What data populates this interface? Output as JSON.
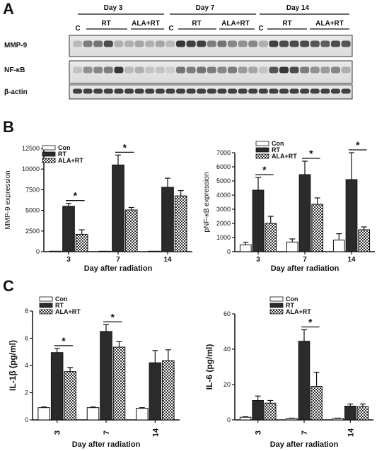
{
  "panel_labels": [
    "A",
    "B",
    "C"
  ],
  "western_blot": {
    "days": [
      "Day 3",
      "Day 7",
      "Day 14"
    ],
    "groups": [
      "C",
      "RT",
      "ALA+RT"
    ],
    "rows": [
      "MMP-9",
      "NF-κB",
      "β-actin"
    ]
  },
  "colors": {
    "con": "#ffffff",
    "rt": "#2b2b2b",
    "alart_pattern": "checker",
    "axis": "#111111"
  },
  "chart_data": [
    {
      "id": "mmp9",
      "type": "bar",
      "categories": [
        "3",
        "7",
        "14"
      ],
      "xlabel": "Day after radiation",
      "ylabel": "MMP-9 expression",
      "ylim": [
        0,
        12500
      ],
      "yticks": [
        0,
        2500,
        5000,
        7500,
        10000,
        12500
      ],
      "series": [
        {
          "name": "Con",
          "values": [
            60,
            60,
            60
          ],
          "errors": [
            0,
            0,
            0
          ]
        },
        {
          "name": "RT",
          "values": [
            5500,
            10500,
            7800
          ],
          "errors": [
            350,
            1200,
            1100
          ]
        },
        {
          "name": "ALA+RT",
          "values": [
            2100,
            5050,
            6750
          ],
          "errors": [
            550,
            300,
            650
          ]
        }
      ],
      "significance": [
        0,
        1
      ],
      "legend": "top-left"
    },
    {
      "id": "pnfkb",
      "type": "bar",
      "categories": [
        "3",
        "7",
        "14"
      ],
      "xlabel": "Day after radiation",
      "ylabel": "pNF-κB expression",
      "ylim": [
        0,
        7000
      ],
      "yticks": [
        0,
        1000,
        2000,
        3000,
        4000,
        5000,
        6000,
        7000
      ],
      "series": [
        {
          "name": "Con",
          "values": [
            480,
            680,
            820
          ],
          "errors": [
            180,
            220,
            450
          ]
        },
        {
          "name": "RT",
          "values": [
            4350,
            5450,
            5100
          ],
          "errors": [
            900,
            950,
            1900
          ]
        },
        {
          "name": "ALA+RT",
          "values": [
            2000,
            3350,
            1550
          ],
          "errors": [
            500,
            450,
            200
          ]
        }
      ],
      "significance": [
        0,
        1,
        2
      ],
      "legend": "top-right"
    },
    {
      "id": "il1b",
      "type": "bar",
      "categories": [
        "3",
        "7",
        "14"
      ],
      "xlabel": "Day after radiation",
      "ylabel": "IL-1β (pg/ml)",
      "ylim": [
        0,
        8
      ],
      "yticks": [
        0,
        2,
        4,
        6,
        8
      ],
      "series": [
        {
          "name": "Con",
          "values": [
            0.9,
            0.9,
            0.85
          ],
          "errors": [
            0.05,
            0.05,
            0.05
          ]
        },
        {
          "name": "RT",
          "values": [
            4.95,
            6.5,
            4.2
          ],
          "errors": [
            0.3,
            0.5,
            0.9
          ]
        },
        {
          "name": "ALA+RT",
          "values": [
            3.55,
            5.35,
            4.35
          ],
          "errors": [
            0.3,
            0.4,
            0.8
          ]
        }
      ],
      "significance": [
        0,
        1
      ],
      "legend": "top-left"
    },
    {
      "id": "il6",
      "type": "bar",
      "categories": [
        "3",
        "7",
        "14"
      ],
      "xlabel": "Day after radiation",
      "ylabel": "IL-6 (pg/ml)",
      "ylim": [
        0,
        60
      ],
      "yticks": [
        0,
        20,
        40,
        60
      ],
      "series": [
        {
          "name": "Con",
          "values": [
            1.5,
            0.8,
            0.8
          ],
          "errors": [
            0.3,
            0.2,
            0.2
          ]
        },
        {
          "name": "RT",
          "values": [
            11,
            44.5,
            7.8
          ],
          "errors": [
            2.5,
            6.5,
            1.2
          ]
        },
        {
          "name": "ALA+RT",
          "values": [
            9.5,
            19,
            7.5
          ],
          "errors": [
            1.5,
            8,
            1.5
          ]
        }
      ],
      "significance": [
        1
      ],
      "legend": "top-right"
    }
  ]
}
